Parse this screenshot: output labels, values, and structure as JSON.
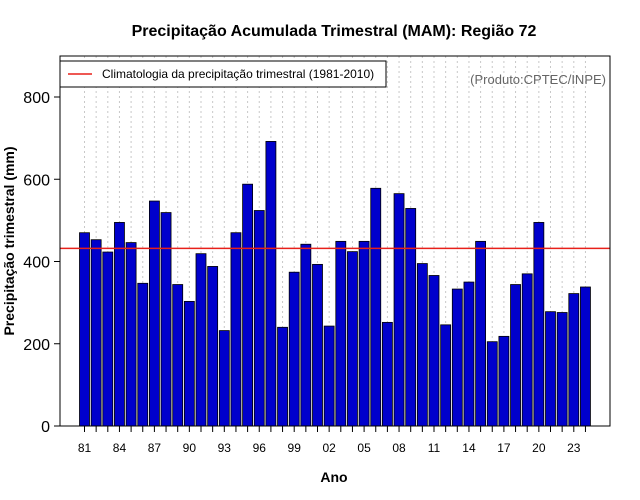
{
  "chart_data": {
    "type": "bar",
    "title": "Precipitação Acumulada Trimestral (MAM): Região 72",
    "xlabel": "Ano",
    "ylabel": "Precipitação trimestral (mm)",
    "ylim": [
      0,
      880
    ],
    "yticks": [
      0,
      200,
      400,
      600,
      800
    ],
    "x_tick_labels": [
      "81",
      "84",
      "87",
      "90",
      "93",
      "96",
      "99",
      "02",
      "05",
      "08",
      "11",
      "14",
      "17",
      "20",
      "23"
    ],
    "x_tick_every": 3,
    "categories": [
      "1981",
      "1982",
      "1983",
      "1984",
      "1985",
      "1986",
      "1987",
      "1988",
      "1989",
      "1990",
      "1991",
      "1992",
      "1993",
      "1994",
      "1995",
      "1996",
      "1997",
      "1998",
      "1999",
      "2000",
      "2001",
      "2002",
      "2003",
      "2004",
      "2005",
      "2006",
      "2007",
      "2008",
      "2009",
      "2010",
      "2011",
      "2012",
      "2013",
      "2014",
      "2015",
      "2016",
      "2017",
      "2018",
      "2019",
      "2020",
      "2021",
      "2022",
      "2023",
      "2024"
    ],
    "values": [
      470,
      453,
      423,
      495,
      446,
      347,
      547,
      519,
      344,
      303,
      419,
      388,
      232,
      470,
      588,
      524,
      692,
      240,
      374,
      442,
      393,
      243,
      449,
      424,
      449,
      578,
      252,
      565,
      529,
      395,
      366,
      246,
      333,
      350,
      449,
      205,
      218,
      344,
      370,
      495,
      278,
      276,
      322,
      338
    ],
    "reference_line": {
      "label": "Climatologia da precipitação trimestral (1981-2010)",
      "value": 432
    },
    "grid": "vertical dotted",
    "legend_position": "top-left",
    "annotation": "(Produto:CPTEC/INPE)",
    "colors": {
      "bar": "#0000cc",
      "line": "#e8201a",
      "grid": "#c8c8c8"
    }
  }
}
